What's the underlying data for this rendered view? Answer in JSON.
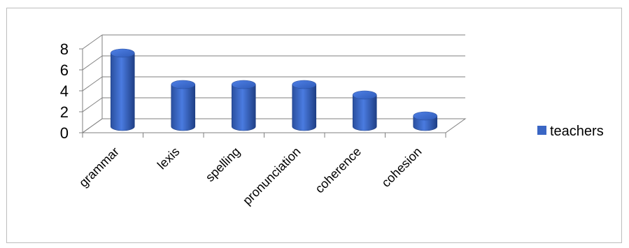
{
  "chart_data": {
    "type": "bar",
    "style": "3d-cylinder",
    "categories": [
      "grammar",
      "lexis",
      "spelling",
      "pronunciation",
      "coherence",
      "cohesion"
    ],
    "series": [
      {
        "name": "teachers",
        "values": [
          7,
          4,
          4,
          4,
          3,
          1
        ],
        "color": "#3a66c4"
      }
    ],
    "yticks": [
      "0",
      "2",
      "4",
      "6",
      "8"
    ],
    "ylim": [
      0,
      8
    ],
    "grid": true,
    "legend": "right"
  }
}
